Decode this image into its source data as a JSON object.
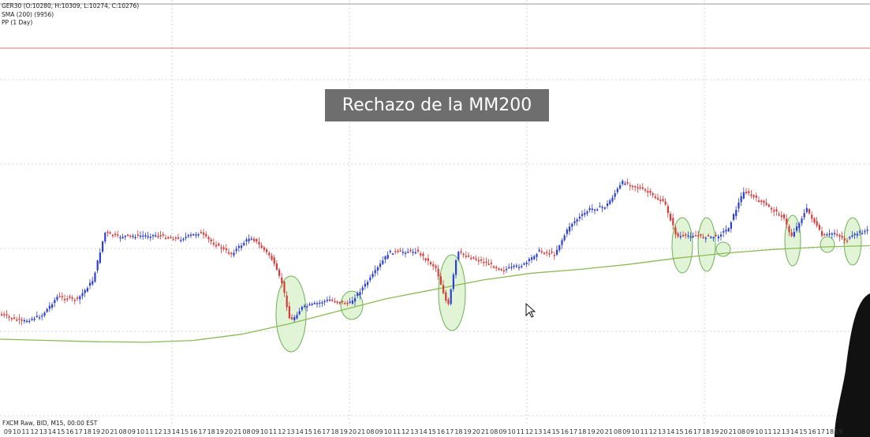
{
  "legend": {
    "symbol_line": "GER30 (O:10280, H:10309, L:10274, C:10276)",
    "sma_line": "SMA (200) (9956)",
    "pp_line": "PP (1 Day)"
  },
  "annotation": {
    "text": "Rechazo de la MM200"
  },
  "feed_label": "FXCM Raw, BID, M15, 00:00 EST",
  "colors": {
    "bull_candle": "#2c3fd6",
    "bear_candle": "#d83a3a",
    "sma_line": "#8dba56",
    "pivot_line": "#e07070",
    "highlight_fill": "#d7f0c8",
    "highlight_stroke": "#6fb05a",
    "grid": "#c8c8c8"
  },
  "chart_data": {
    "type": "line",
    "title": "",
    "series": [
      {
        "values": [
          9860,
          9858,
          9856,
          9855,
          9858,
          9868,
          9885,
          9905,
          9925,
          9940,
          9955,
          9966,
          9972,
          9980,
          9990,
          9998,
          10004,
          10008,
          10010
        ]
      }
    ],
    "x": [
      "09",
      "10",
      "11",
      "12",
      "13",
      "14",
      "15",
      "16",
      "17",
      "18",
      "19",
      "20",
      "21",
      "08",
      "09",
      "10",
      "11",
      "12",
      "13"
    ],
    "annotations": [
      "Rechazo de la MM200"
    ],
    "x_tick_labels": [
      "09",
      "10",
      "11",
      "12",
      "13",
      "14",
      "15",
      "16",
      "17",
      "18",
      "19",
      "20",
      "21",
      "08",
      "09",
      "10",
      "11",
      "12",
      "13",
      "14",
      "15",
      "16",
      "17",
      "18",
      "19",
      "20",
      "21",
      "08",
      "09",
      "10",
      "11",
      "12",
      "13",
      "14",
      "15",
      "16",
      "17",
      "18",
      "19",
      "20",
      "21",
      "08",
      "09",
      "10",
      "11",
      "12",
      "13",
      "14",
      "15",
      "16",
      "17",
      "18",
      "19",
      "20",
      "21",
      "08",
      "09",
      "10",
      "11",
      "12",
      "13",
      "14",
      "15",
      "16",
      "17",
      "18",
      "19",
      "20",
      "21",
      "08",
      "09",
      "10",
      "11",
      "12",
      "13",
      "14",
      "15",
      "16",
      "17",
      "18",
      "19",
      "20",
      "21",
      "08",
      "09",
      "10",
      "11",
      "12",
      "13",
      "14",
      "15",
      "16",
      "17",
      "18",
      "19"
    ],
    "grid": true
  }
}
